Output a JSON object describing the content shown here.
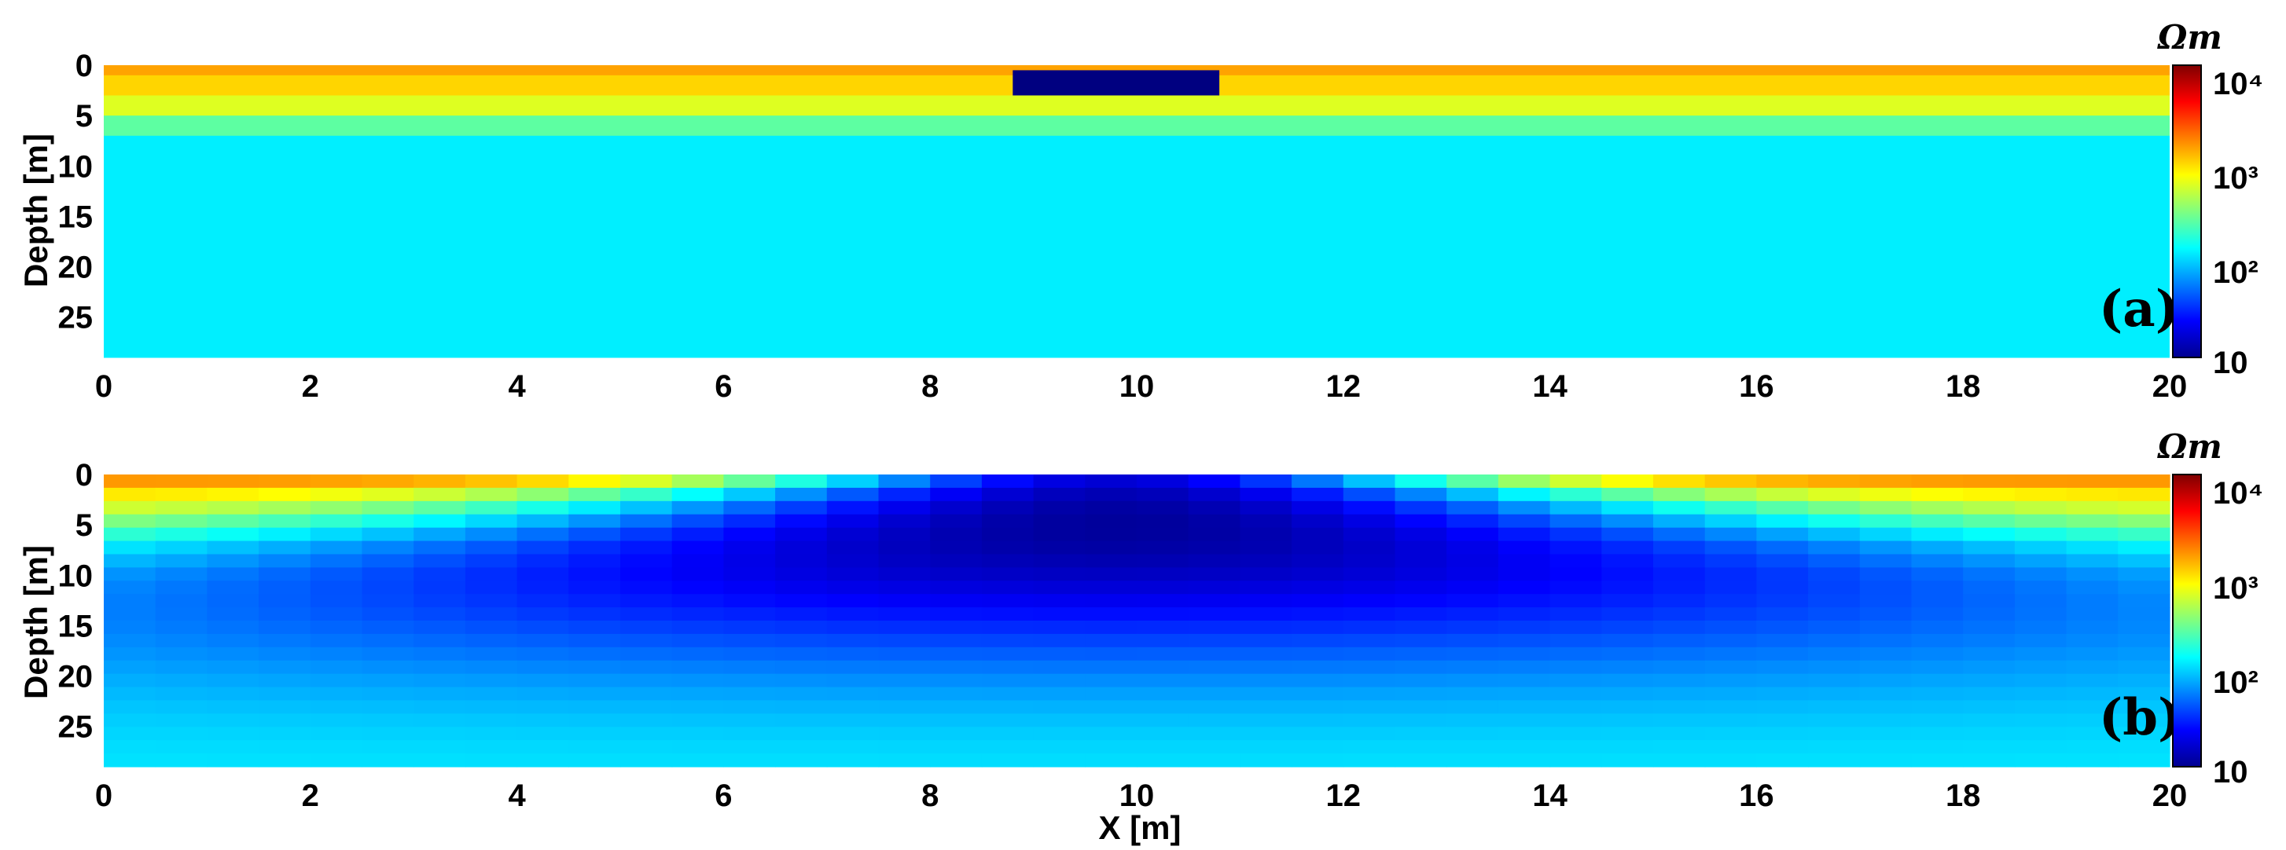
{
  "chart_data": [
    {
      "type": "heatmap",
      "panel_label": "(a)",
      "xlabel": "",
      "ylabel": "Depth [m]",
      "xlim": [
        0,
        20
      ],
      "ylim": [
        29,
        0
      ],
      "x_ticks": [
        "0",
        "2",
        "4",
        "6",
        "8",
        "10",
        "12",
        "14",
        "16",
        "18",
        "20"
      ],
      "y_ticks": [
        "0",
        "5",
        "10",
        "15",
        "20",
        "25"
      ],
      "colorbar": {
        "unit": "Ωm",
        "scale": "log",
        "range": [
          10,
          10000
        ],
        "ticks": [
          "10",
          "10²",
          "10³",
          "10⁴"
        ]
      },
      "layers": [
        {
          "depth_top": 0,
          "depth_bottom": 1,
          "resistivity": 1400
        },
        {
          "depth_top": 1,
          "depth_bottom": 3,
          "resistivity": 1000
        },
        {
          "depth_top": 3,
          "depth_bottom": 5,
          "resistivity": 600
        },
        {
          "depth_top": 5,
          "depth_bottom": 7,
          "resistivity": 250
        },
        {
          "depth_top": 7,
          "depth_bottom": 29,
          "resistivity": 120
        }
      ],
      "anomaly": {
        "x_min": 8.8,
        "x_max": 10.8,
        "depth_top": 0.5,
        "depth_bottom": 3,
        "resistivity": 10
      }
    },
    {
      "type": "heatmap",
      "panel_label": "(b)",
      "xlabel": "X [m]",
      "ylabel": "Depth [m]",
      "xlim": [
        0,
        20
      ],
      "ylim": [
        29,
        0
      ],
      "x_ticks": [
        "0",
        "2",
        "4",
        "6",
        "8",
        "10",
        "12",
        "14",
        "16",
        "18",
        "20"
      ],
      "y_ticks": [
        "0",
        "5",
        "10",
        "15",
        "20",
        "25"
      ],
      "colorbar": {
        "unit": "Ωm",
        "scale": "log",
        "range": [
          10,
          10000
        ],
        "ticks": [
          "10",
          "10²",
          "10³",
          "10⁴"
        ]
      },
      "background_profile": [
        {
          "depth": 0.5,
          "resistivity": 1600
        },
        {
          "depth": 2,
          "resistivity": 900
        },
        {
          "depth": 4,
          "resistivity": 550
        },
        {
          "depth": 7,
          "resistivity": 250
        },
        {
          "depth": 10,
          "resistivity": 170
        },
        {
          "depth": 29,
          "resistivity": 130
        }
      ],
      "low_resistivity_zone": {
        "x_center": 9.8,
        "half_width_x": 3.2,
        "depth_peak": 5,
        "resistivity_min": 12,
        "spread_depth": 15
      }
    }
  ]
}
